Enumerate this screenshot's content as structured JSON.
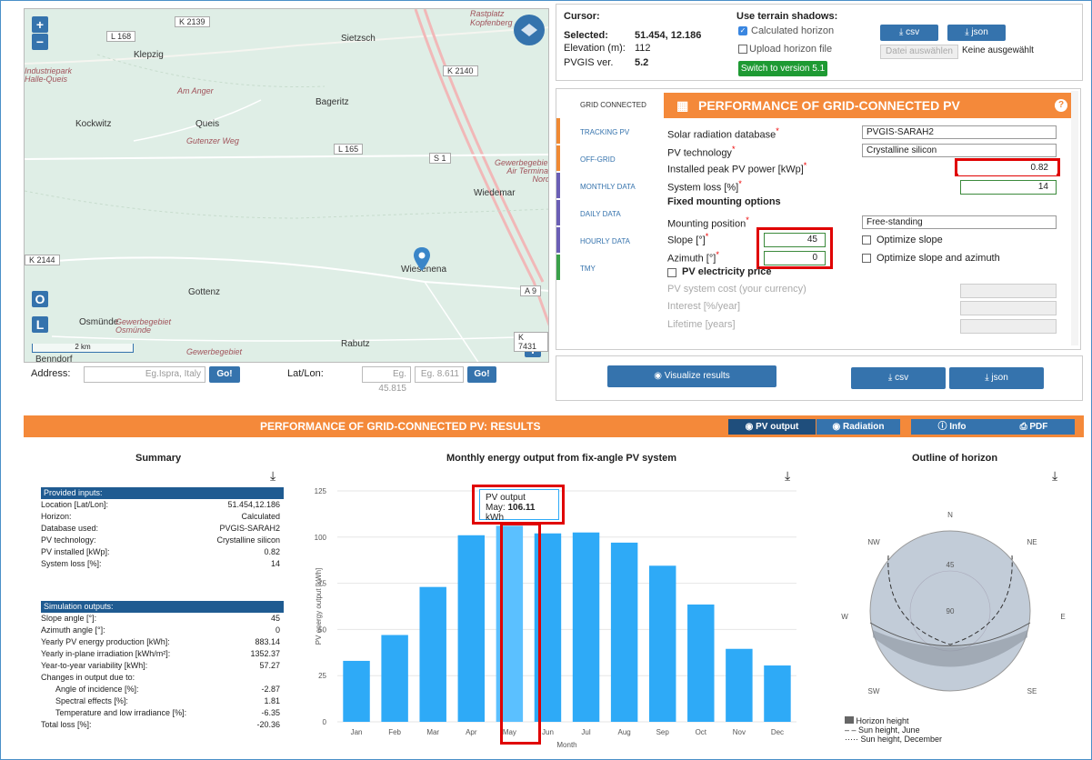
{
  "map": {
    "zoom_in": "+",
    "zoom_out": "−",
    "btn_o": "O",
    "btn_l": "L",
    "btn_i": "i",
    "scale": "2 km",
    "roads": [
      "K 2139",
      "L 168",
      "K 2140",
      "L 165",
      "S 1",
      "K 2144",
      "A 9",
      "K 7431"
    ],
    "places": [
      "Sietzsch",
      "Klepzig",
      "Bageritz",
      "Kockwitz",
      "Queis",
      "Wiedemar",
      "Wiesenena",
      "Gottenz",
      "Osmünde",
      "Rabutz",
      "Benndorf",
      "Gewerbegebiet Osmünde",
      "Gewerbegebiet Air Terminal Nord",
      "Rastplatz Kopfenberg",
      "Industriepark Halle-Queis",
      "Gewerbegebiet",
      "Am Anger",
      "Gutenzer Weg"
    ]
  },
  "address": {
    "label": "Address:",
    "placeholder": "Eg.Ispra, Italy",
    "go": "Go!",
    "latlon_label": "Lat/Lon:",
    "lat_ph": "Eg. 45.815",
    "lon_ph": "Eg. 8.611",
    "go2": "Go!"
  },
  "info": {
    "cursor_label": "Cursor:",
    "selected_label": "Selected:",
    "selected_value": "51.454, 12.186",
    "elevation_label": "Elevation (m):",
    "elevation_value": "112",
    "pvgis_label": "PVGIS ver.",
    "pvgis_value": "5.2",
    "terrain_title": "Use terrain shadows:",
    "calc_horizon": "Calculated horizon",
    "upload_horizon": "Upload horizon file",
    "switch_btn": "Switch to version 5.1",
    "csv": "csv",
    "json": "json",
    "choose_file": "Datei auswählen",
    "no_file": "Keine ausgewählt"
  },
  "tabs": [
    "GRID CONNECTED",
    "TRACKING PV",
    "OFF-GRID",
    "MONTHLY DATA",
    "DAILY DATA",
    "HOURLY DATA",
    "TMY"
  ],
  "tab_colors": [
    "#f08a34",
    "#f08a34",
    "#f08a34",
    "#6b5fb5",
    "#6b5fb5",
    "#6b5fb5",
    "#3aa04a"
  ],
  "panel": {
    "title": "PERFORMANCE OF GRID-CONNECTED PV",
    "db_label": "Solar radiation database",
    "db_value": "PVGIS-SARAH2",
    "tech_label": "PV technology",
    "tech_value": "Crystalline silicon",
    "peak_label": "Installed peak PV power [kWp]",
    "peak_value": "0.82",
    "loss_label": "System loss [%]",
    "loss_value": "14",
    "fixed_title": "Fixed mounting options",
    "mount_label": "Mounting position",
    "mount_value": "Free-standing",
    "slope_label": "Slope [°]",
    "slope_value": "45",
    "opt_slope": "Optimize slope",
    "azimuth_label": "Azimuth [°]",
    "azimuth_value": "0",
    "opt_both": "Optimize slope and azimuth",
    "price_label": "PV electricity price",
    "cost_label": "PV system cost (your currency)",
    "interest_label": "Interest [%/year]",
    "lifetime_label": "Lifetime [years]",
    "visualize": "Visualize results",
    "csv": "csv",
    "json": "json"
  },
  "results": {
    "title": "PERFORMANCE OF GRID-CONNECTED PV: RESULTS",
    "btn_pv": "PV output",
    "btn_rad": "Radiation",
    "btn_info": "Info",
    "btn_pdf": "PDF",
    "summary_title": "Summary",
    "chart_title": "Monthly energy output from fix-angle PV system",
    "horizon_title": "Outline of horizon",
    "inputs_head": "Provided inputs:",
    "inputs": [
      [
        "Location [Lat/Lon]:",
        "51.454,12.186"
      ],
      [
        "Horizon:",
        "Calculated"
      ],
      [
        "Database used:",
        "PVGIS-SARAH2"
      ],
      [
        "PV technology:",
        "Crystalline silicon"
      ],
      [
        "PV installed [kWp]:",
        "0.82"
      ],
      [
        "System loss [%]:",
        "14"
      ]
    ],
    "outputs_head": "Simulation outputs:",
    "outputs": [
      [
        "Slope angle [°]:",
        "45"
      ],
      [
        "Azimuth angle [°]:",
        "0"
      ],
      [
        "Yearly PV energy production [kWh]:",
        "883.14"
      ],
      [
        "Yearly in-plane irradiation [kWh/m²]:",
        "1352.37"
      ],
      [
        "Year-to-year variability [kWh]:",
        "57.27"
      ],
      [
        "Changes in output due to:",
        ""
      ],
      [
        "Angle of incidence [%]:",
        "-2.87"
      ],
      [
        "Spectral effects [%]:",
        "1.81"
      ],
      [
        "Temperature and low irradiance [%]:",
        "-6.35"
      ],
      [
        "Total loss [%]:",
        "-20.36"
      ]
    ],
    "tooltip_series": "PV output",
    "tooltip_month": "May:",
    "tooltip_value": "106.11",
    "tooltip_unit": "kWh",
    "legend": [
      "Horizon height",
      "Sun height, June",
      "Sun height, December"
    ],
    "compass": [
      "N",
      "NE",
      "E",
      "SE",
      "S",
      "SW",
      "W",
      "NW"
    ],
    "rings": [
      "45",
      "90"
    ]
  },
  "chart_data": {
    "type": "bar",
    "categories": [
      "Jan",
      "Feb",
      "Mar",
      "Apr",
      "May",
      "Jun",
      "Jul",
      "Aug",
      "Sep",
      "Oct",
      "Nov",
      "Dec"
    ],
    "values": [
      33,
      47,
      73,
      101,
      106.11,
      102,
      102.5,
      97,
      84.5,
      63.5,
      39.5,
      30.5
    ],
    "ylabel": "PV energy output [kWh]",
    "xlabel": "Month",
    "ylim": [
      0,
      125
    ],
    "yticks": [
      "0",
      "25",
      "50",
      "75",
      "100",
      "125"
    ],
    "color": "#2eaaf7",
    "highlight_color": "#5bc0ff",
    "highlight": "May"
  },
  "colors": {
    "accent": "#f4893a",
    "button": "#3573ad",
    "highlight": "#e00000"
  }
}
